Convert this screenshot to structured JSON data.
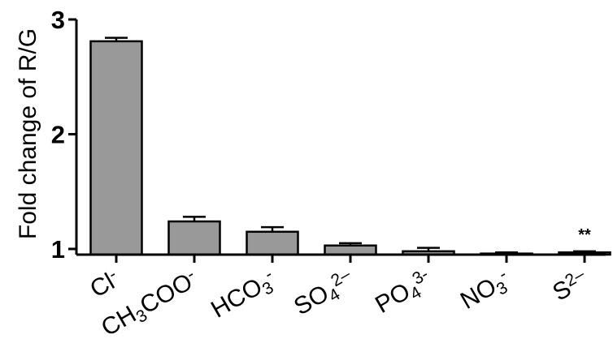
{
  "chart_data": {
    "type": "bar",
    "ylabel": "Fold change of R/G",
    "ylim": [
      0.95,
      3.0
    ],
    "yticks": [
      1,
      2,
      3
    ],
    "categories": [
      {
        "parts": [
          {
            "t": "Cl",
            "s": "n"
          },
          {
            "t": "-",
            "s": "sup"
          }
        ]
      },
      {
        "parts": [
          {
            "t": "CH",
            "s": "n"
          },
          {
            "t": "3",
            "s": "sub"
          },
          {
            "t": "COO",
            "s": "n"
          },
          {
            "t": "-",
            "s": "sup"
          }
        ]
      },
      {
        "parts": [
          {
            "t": "HCO",
            "s": "n"
          },
          {
            "t": "3",
            "s": "sub"
          },
          {
            "t": "-",
            "s": "sup"
          }
        ]
      },
      {
        "parts": [
          {
            "t": "SO",
            "s": "n"
          },
          {
            "t": "4",
            "s": "sub"
          },
          {
            "t": "2–",
            "s": "sup"
          }
        ]
      },
      {
        "parts": [
          {
            "t": "PO",
            "s": "n"
          },
          {
            "t": "4",
            "s": "sub"
          },
          {
            "t": "3-",
            "s": "sup"
          }
        ]
      },
      {
        "parts": [
          {
            "t": "NO",
            "s": "n"
          },
          {
            "t": "3",
            "s": "sub"
          },
          {
            "t": "-",
            "s": "sup"
          }
        ]
      },
      {
        "parts": [
          {
            "t": "S",
            "s": "n"
          },
          {
            "t": "2–",
            "s": "sup"
          }
        ]
      }
    ],
    "values": [
      2.81,
      1.24,
      1.15,
      1.03,
      0.98,
      0.96,
      0.97
    ],
    "errors": [
      0.03,
      0.04,
      0.04,
      0.02,
      0.03,
      0.01,
      0.01
    ],
    "annotations": [
      {
        "category_index": 6,
        "text": "**"
      }
    ],
    "bar_color": "#999999",
    "grid": false
  }
}
